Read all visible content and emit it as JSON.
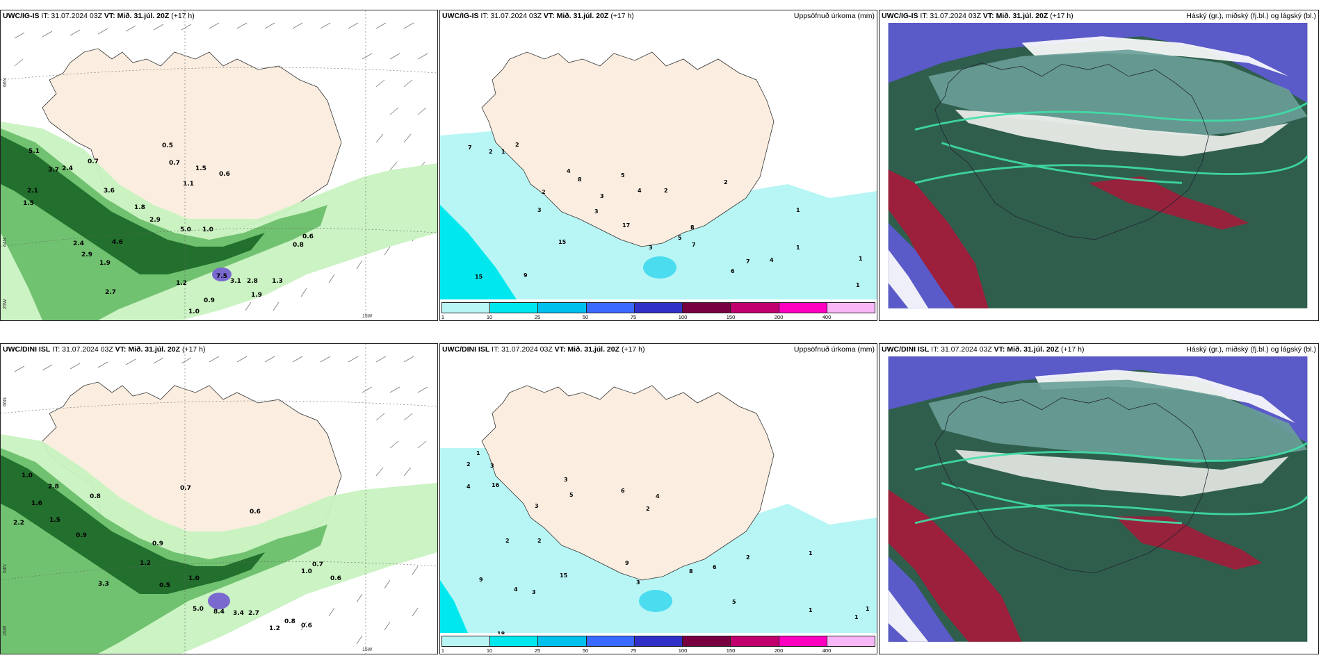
{
  "panels": [
    {
      "model": "UWC/IG-IS",
      "it_label": "IT: 31.07.2024 03Z",
      "vt_label": "VT: Mið. 31.júl. 20Z",
      "lead": "(+17 h)",
      "subtitle": ""
    },
    {
      "model": "UWC/IG-IS",
      "it_label": "IT: 31.07.2024 03Z",
      "vt_label": "VT: Mið. 31.júl. 20Z",
      "lead": "(+17 h)",
      "subtitle": "Uppsöfnuð úrkoma (mm)"
    },
    {
      "model": "UWC/IG-IS",
      "it_label": "IT: 31.07.2024 03Z",
      "vt_label": "VT: Mið. 31.júl. 20Z",
      "lead": "(+17 h)",
      "subtitle": "Háský (gr.), miðský (fj.bl.) og lágský (bl.)"
    },
    {
      "model": "UWC/DINI ISL",
      "it_label": "IT: 31.07.2024 03Z",
      "vt_label": "VT: Mið. 31.júl. 20Z",
      "lead": "(+17 h)",
      "subtitle": ""
    },
    {
      "model": "UWC/DINI ISL",
      "it_label": "IT: 31.07.2024 03Z",
      "vt_label": "VT: Mið. 31.júl. 20Z",
      "lead": "(+17 h)",
      "subtitle": "Uppsöfnuð úrkoma (mm)"
    },
    {
      "model": "UWC/DINI ISL",
      "it_label": "IT: 31.07.2024 03Z",
      "vt_label": "VT: Mið. 31.júl. 20Z",
      "lead": "(+17 h)",
      "subtitle": "Háský (gr.), miðský (fj.bl.) og lágský (bl.)"
    }
  ],
  "grid_labels": {
    "n66": "66N",
    "n64": "64N",
    "w25": "25W",
    "w15": "15W"
  },
  "precip_legend": {
    "ticks": [
      "1",
      "10",
      "25",
      "50",
      "75",
      "100",
      "150",
      "200",
      "400"
    ],
    "colors": [
      "#b8f6f6",
      "#00e8ee",
      "#00c0ee",
      "#3a6aff",
      "#3030c8",
      "#780040",
      "#c0006c",
      "#ff00c0",
      "#f8b8f8"
    ]
  },
  "colors": {
    "land": "#fbeee0",
    "precip_light": "#b8f6f6",
    "precip_mid": "#4cdcf0",
    "green_light": "#c8f2c0",
    "green_mid": "#6cbf6c",
    "green_dark": "#1f6a2a",
    "cloud_low": "#2f5e4c",
    "cloud_mid": "#6a9e98",
    "cloud_high": "#a8183a",
    "cloud_white": "#ffffff",
    "cloud_purple": "#5a5ac8"
  },
  "rain_labels_top": [
    "5.1",
    "3.7",
    "2.4",
    "2.1",
    "1.5",
    "0.7",
    "0.5",
    "0.7",
    "0.6",
    "1.5",
    "1.1",
    "3.6",
    "1.8",
    "2.9",
    "5.0",
    "1.0",
    "2.4",
    "4.6",
    "2.9",
    "1.9",
    "7.5",
    "3.1",
    "2.8",
    "1.2",
    "0.9",
    "1.0",
    "0.8",
    "0.6",
    "1.9",
    "2.7",
    "1.3"
  ],
  "rain_labels_bottom": [
    "1.0",
    "2.8",
    "1.6",
    "2.2",
    "1.5",
    "0.9",
    "0.8",
    "0.7",
    "0.6",
    "1.2",
    "3.3",
    "5.0",
    "8.4",
    "3.4",
    "2.7",
    "1.2",
    "0.8",
    "0.6",
    "0.9",
    "1.0",
    "0.5",
    "1.0",
    "0.7",
    "0.6"
  ],
  "precip_labels_top": [
    "7",
    "2",
    "1",
    "2",
    "4",
    "8",
    "2",
    "3",
    "3",
    "3",
    "5",
    "4",
    "2",
    "17",
    "15",
    "15",
    "9",
    "3",
    "5",
    "7",
    "8",
    "6",
    "7",
    "4",
    "2",
    "1",
    "1",
    "1",
    "1"
  ],
  "precip_labels_bottom": [
    "1",
    "2",
    "3",
    "4",
    "16",
    "3",
    "2",
    "2",
    "3",
    "5",
    "6",
    "4",
    "2",
    "9",
    "15",
    "3",
    "3",
    "4",
    "8",
    "6",
    "5",
    "2",
    "1",
    "1",
    "1",
    "1",
    "18",
    "9"
  ]
}
